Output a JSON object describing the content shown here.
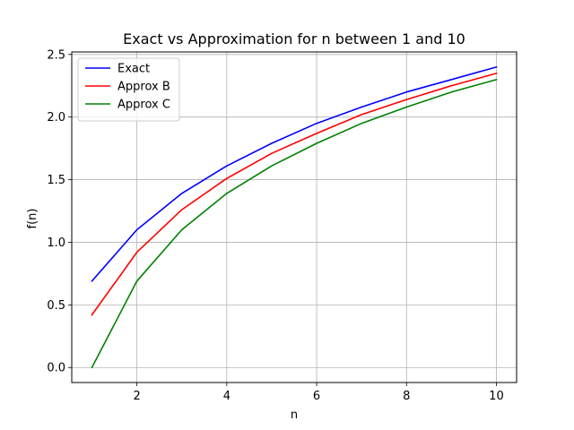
{
  "chart_data": {
    "type": "line",
    "title": "Exact vs Approximation for n between 1 and 10",
    "xlabel": "n",
    "ylabel": "f(n)",
    "xlim": [
      0.55,
      10.45
    ],
    "ylim": [
      -0.12,
      2.52
    ],
    "xticks": [
      2,
      4,
      6,
      8,
      10
    ],
    "xtick_labels": [
      "2",
      "4",
      "6",
      "8",
      "10"
    ],
    "yticks": [
      0.0,
      0.5,
      1.0,
      1.5,
      2.0,
      2.5
    ],
    "ytick_labels": [
      "0.0",
      "0.5",
      "1.0",
      "1.5",
      "2.0",
      "2.5"
    ],
    "grid": true,
    "legend_position": "top-left",
    "x": [
      1,
      2,
      3,
      4,
      5,
      6,
      7,
      8,
      9,
      10
    ],
    "series": [
      {
        "name": "Exact",
        "color": "#0000ff",
        "values": [
          0.69,
          1.1,
          1.39,
          1.61,
          1.79,
          1.95,
          2.08,
          2.2,
          2.3,
          2.4
        ]
      },
      {
        "name": "Approx B",
        "color": "#ff0000",
        "values": [
          0.42,
          0.92,
          1.26,
          1.51,
          1.71,
          1.87,
          2.02,
          2.14,
          2.25,
          2.35
        ]
      },
      {
        "name": "Approx C",
        "color": "#008000",
        "values": [
          0.0,
          0.69,
          1.1,
          1.39,
          1.61,
          1.79,
          1.95,
          2.08,
          2.2,
          2.3
        ]
      }
    ]
  }
}
